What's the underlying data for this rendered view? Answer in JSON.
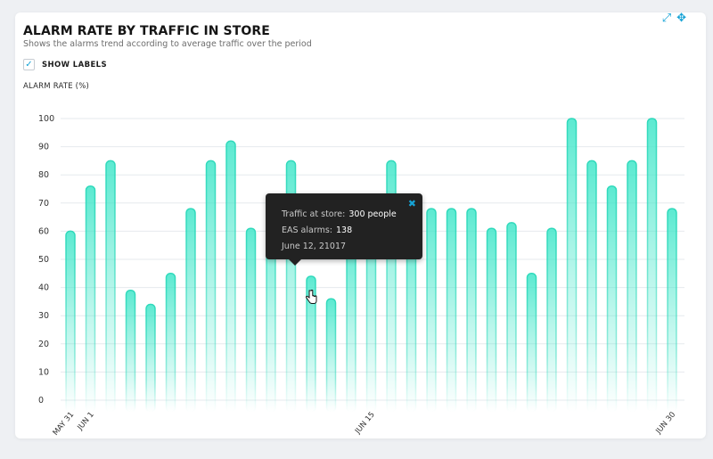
{
  "header": {
    "title": "ALARM RATE BY TRAFFIC IN STORE",
    "subtitle": "Shows the alarms trend according to average traffic over the period"
  },
  "controls": {
    "show_labels": {
      "label": "SHOW LABELS",
      "checked": true
    },
    "toolbar": {
      "expand_icon": "expand-icon",
      "move_icon": "move-icon"
    }
  },
  "tooltip": {
    "traffic_label": "Traffic at store:",
    "traffic_value": "300 people",
    "alarms_label": "EAS alarms:",
    "alarms_value": "138",
    "date": "June 12, 21017",
    "close_icon": "close-icon"
  },
  "colors": {
    "bar": "#3fe6c9",
    "bar_stroke": "#2fd9bb",
    "accent": "#16a3d6",
    "tooltip_bg": "#222222"
  },
  "chart_data": {
    "type": "bar",
    "title": "ALARM RATE BY TRAFFIC IN STORE",
    "subtitle": "Shows the alarms trend according to average traffic over the period",
    "xlabel": "",
    "ylabel": "ALARM RATE (%)",
    "ylim": [
      0,
      100
    ],
    "yticks": [
      0,
      10,
      20,
      30,
      40,
      50,
      60,
      70,
      80,
      90,
      100
    ],
    "grid": true,
    "x_tick_labels": [
      {
        "index": 0,
        "label": "MAY 31"
      },
      {
        "index": 1,
        "label": "JUN 1"
      },
      {
        "index": 15,
        "label": "JUN 15"
      },
      {
        "index": 30,
        "label": "JUN 30"
      }
    ],
    "values": [
      60,
      76,
      85,
      39,
      34,
      45,
      68,
      85,
      92,
      61,
      71,
      85,
      44,
      36,
      58,
      73,
      85,
      64,
      68,
      68,
      68,
      61,
      63,
      45,
      61,
      100,
      85,
      76,
      85,
      100,
      68
    ],
    "highlight_index": 12
  }
}
